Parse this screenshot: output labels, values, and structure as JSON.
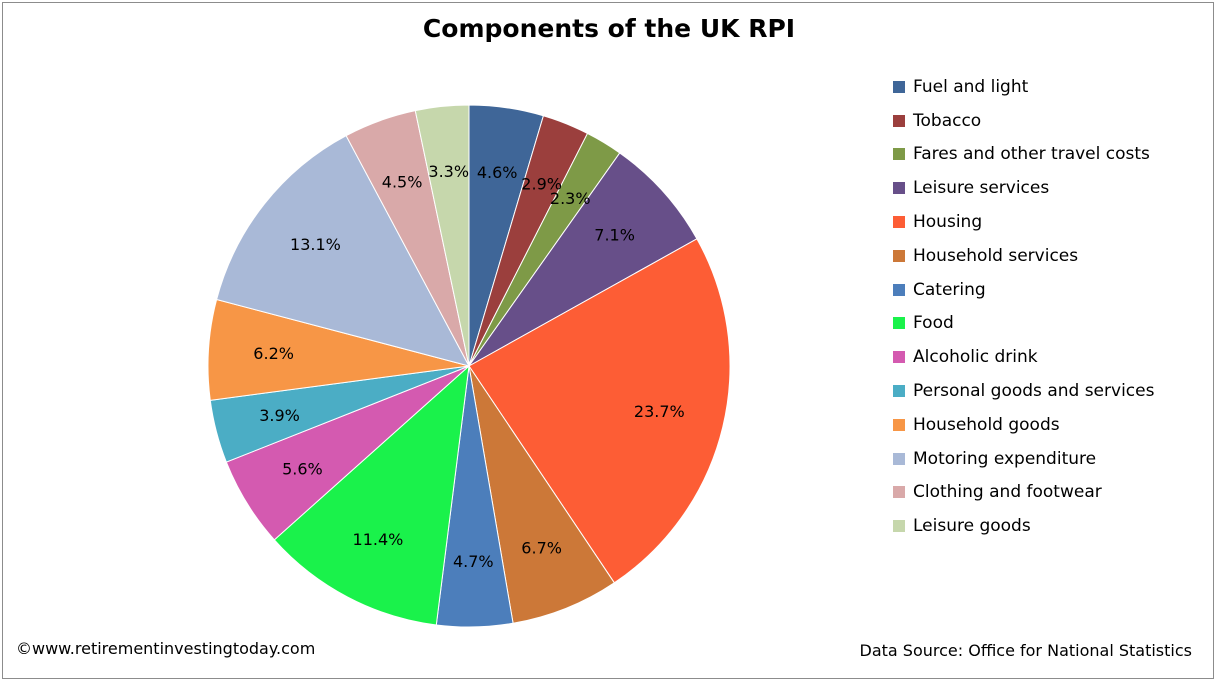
{
  "chart_data": {
    "type": "pie",
    "title": "Components of the UK RPI",
    "slices": [
      {
        "label": "Fuel and light",
        "value": 4.6,
        "value_label": "4.6%",
        "color": "#3f6698"
      },
      {
        "label": "Tobacco",
        "value": 2.9,
        "value_label": "2.9%",
        "color": "#9b3f3d"
      },
      {
        "label": "Fares and other travel costs",
        "value": 2.3,
        "value_label": "2.3%",
        "color": "#7e9a47"
      },
      {
        "label": "Leisure services",
        "value": 7.1,
        "value_label": "7.1%",
        "color": "#674f89"
      },
      {
        "label": "Housing",
        "value": 23.7,
        "value_label": "23.7%",
        "color": "#fd5d35"
      },
      {
        "label": "Household services",
        "value": 6.7,
        "value_label": "6.7%",
        "color": "#cc7838"
      },
      {
        "label": "Catering",
        "value": 4.7,
        "value_label": "4.7%",
        "color": "#4c7ebb"
      },
      {
        "label": "Food",
        "value": 11.4,
        "value_label": "11.4%",
        "color": "#1af24b"
      },
      {
        "label": "Alcoholic drink",
        "value": 5.6,
        "value_label": "5.6%",
        "color": "#d45ab0"
      },
      {
        "label": "Personal goods and services",
        "value": 3.9,
        "value_label": "3.9%",
        "color": "#4badc5"
      },
      {
        "label": "Household goods",
        "value": 6.2,
        "value_label": "6.2%",
        "color": "#f79646"
      },
      {
        "label": "Motoring expenditure",
        "value": 13.1,
        "value_label": "13.1%",
        "color": "#a9b9d7"
      },
      {
        "label": "Clothing and footwear",
        "value": 4.5,
        "value_label": "4.5%",
        "color": "#d9a9a9"
      },
      {
        "label": "Leisure goods",
        "value": 3.3,
        "value_label": "3.3%",
        "color": "#c6d7ac"
      }
    ],
    "legend_position": "right"
  },
  "footer": {
    "copyright": "©www.retirementinvestingtoday.com",
    "source": "Data Source: Office for National Statistics"
  }
}
